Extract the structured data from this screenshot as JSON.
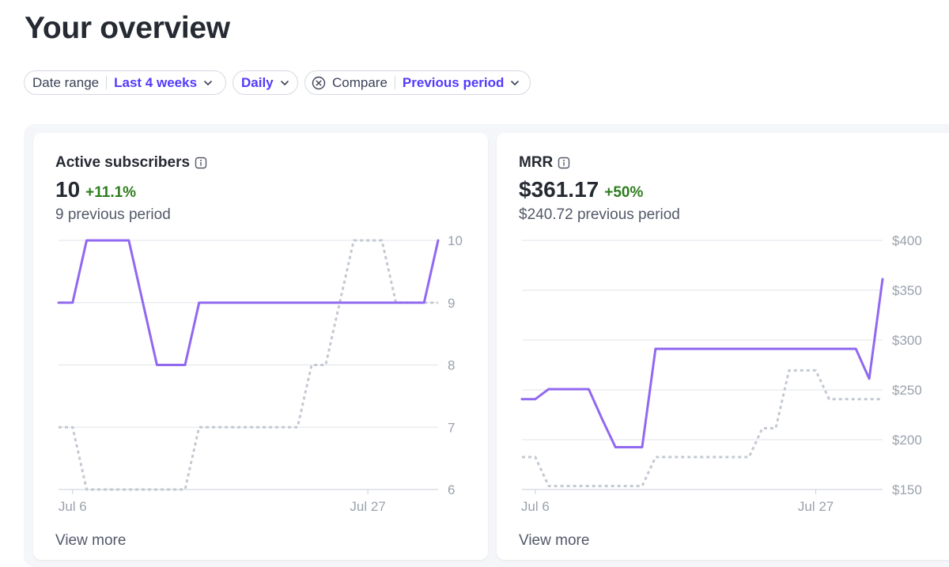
{
  "header": {
    "title": "Your overview"
  },
  "filters": {
    "date_range_label": "Date range",
    "date_range_value": "Last 4 weeks",
    "interval_value": "Daily",
    "compare_label": "Compare",
    "compare_value": "Previous period"
  },
  "cards": [
    {
      "title": "Active subscribers",
      "value": "10",
      "change": "+11.1%",
      "previous": "9 previous period",
      "view_more": "View more"
    },
    {
      "title": "MRR",
      "value": "$361.17",
      "change": "+50%",
      "previous": "$240.72 previous period",
      "view_more": "View more"
    }
  ],
  "colors": {
    "current": "#9168f0",
    "previous": "#c3c9d2",
    "accent": "#533afd",
    "positive": "#2e7d1e"
  },
  "chart_data": [
    {
      "type": "line",
      "x_ticks": [
        "Jul 6",
        "Jul 27"
      ],
      "y_ticks": [
        "10",
        "9",
        "8",
        "7",
        "6"
      ],
      "ylim": [
        6,
        10
      ],
      "x_count": 28,
      "x_tick_index": [
        1,
        22
      ],
      "series": [
        {
          "values": [
            9,
            9,
            10,
            10,
            10,
            10,
            9,
            8,
            8,
            8,
            9,
            9,
            9,
            9,
            9,
            9,
            9,
            9,
            9,
            9,
            9,
            9,
            9,
            9,
            9,
            9,
            9,
            10
          ]
        },
        {
          "values": [
            7,
            7,
            6,
            6,
            6,
            6,
            6,
            6,
            6,
            6,
            7,
            7,
            7,
            7,
            7,
            7,
            7,
            7,
            8,
            8,
            9,
            10,
            10,
            10,
            9,
            9,
            9,
            9
          ]
        }
      ]
    },
    {
      "type": "line",
      "x_ticks": [
        "Jul 6",
        "Jul 27"
      ],
      "y_ticks": [
        "$400",
        "$350",
        "$300",
        "$250",
        "$200",
        "$150"
      ],
      "ylim": [
        150,
        400
      ],
      "x_count": 28,
      "x_tick_index": [
        1,
        22
      ],
      "series": [
        {
          "values": [
            240.72,
            240.72,
            250.72,
            250.72,
            250.72,
            250.72,
            220.72,
            192.5,
            192.5,
            192.5,
            291.17,
            291.17,
            291.17,
            291.17,
            291.17,
            291.17,
            291.17,
            291.17,
            291.17,
            291.17,
            291.17,
            291.17,
            291.17,
            291.17,
            291.17,
            291.17,
            261.17,
            361.17
          ]
        },
        {
          "values": [
            182.5,
            182.5,
            153.5,
            153.5,
            153.5,
            153.5,
            153.5,
            153.5,
            153.5,
            153.5,
            182.5,
            182.5,
            182.5,
            182.5,
            182.5,
            182.5,
            182.5,
            182.5,
            211.5,
            211.5,
            269.5,
            269.5,
            269.5,
            240.72,
            240.72,
            240.72,
            240.72,
            240.72
          ]
        }
      ]
    }
  ]
}
